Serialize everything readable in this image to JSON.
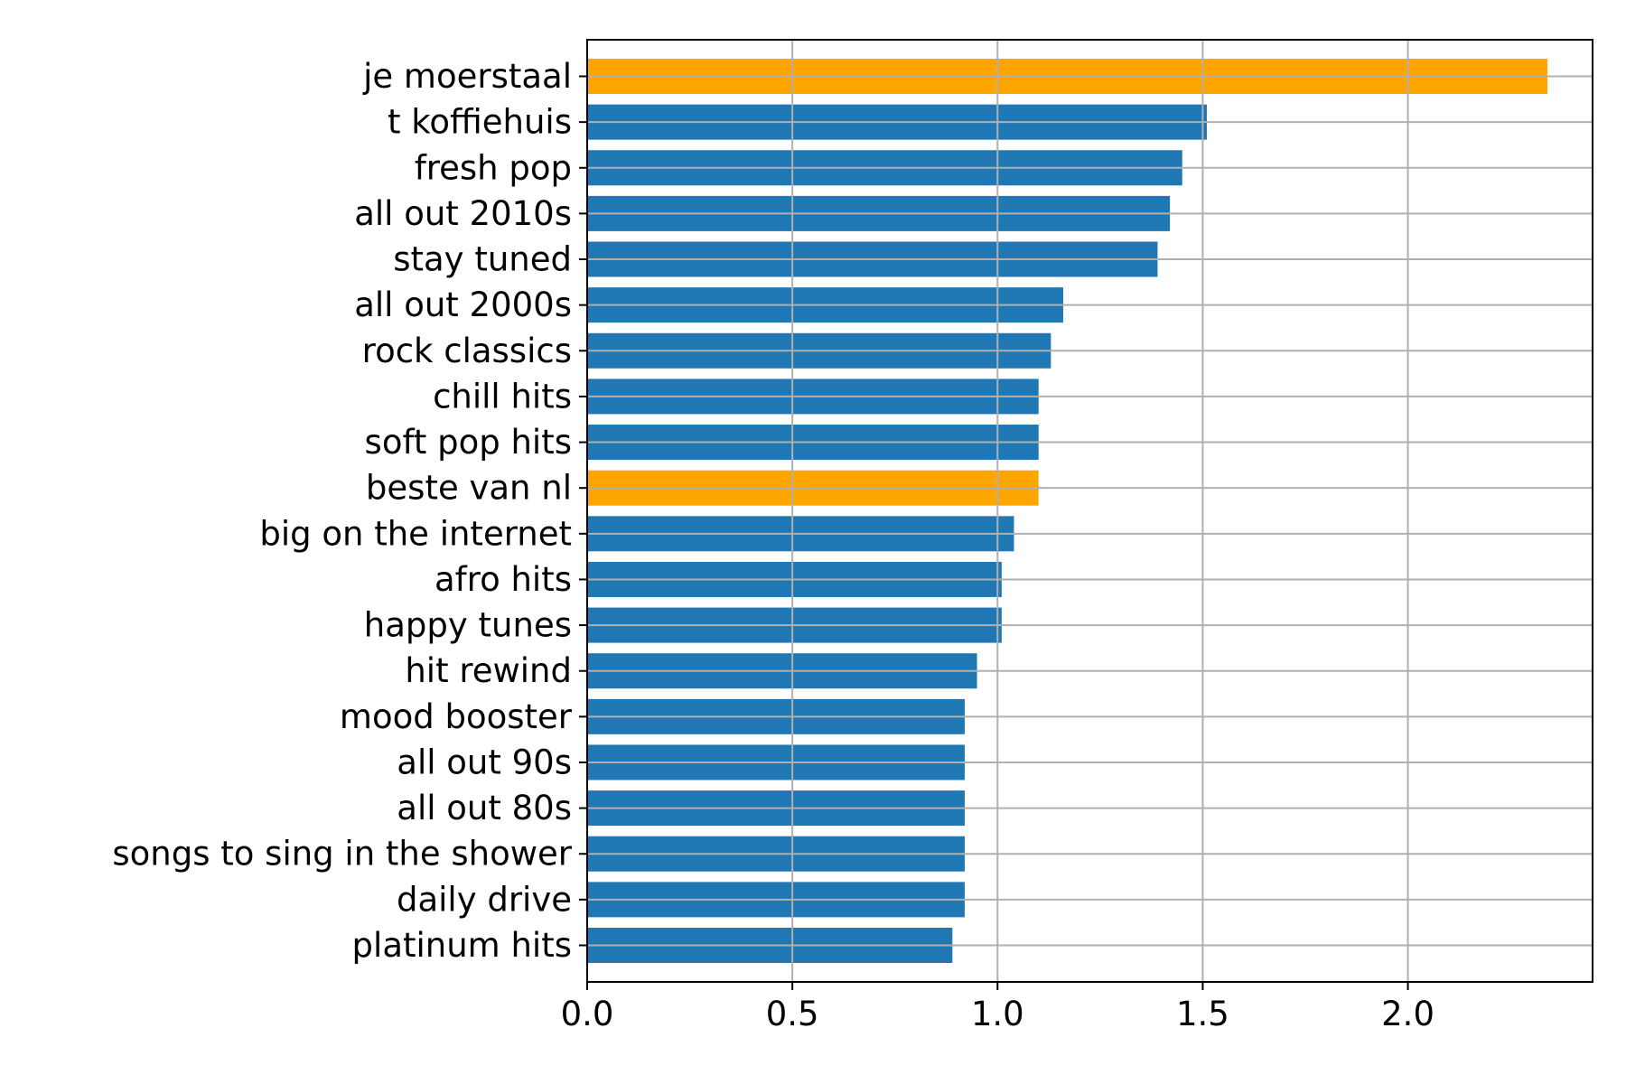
{
  "chart_data": {
    "type": "bar",
    "orientation": "horizontal",
    "title": "",
    "xlabel": "",
    "ylabel": "",
    "categories": [
      "je moerstaal",
      "t koffiehuis",
      "fresh pop",
      "all out 2010s",
      "stay tuned",
      "all out 2000s",
      "rock classics",
      "chill hits",
      "soft pop hits",
      "beste van nl",
      "big on the internet",
      "afro hits",
      "happy tunes",
      "hit rewind",
      "mood booster",
      "all out 90s",
      "all out 80s",
      "songs to sing in the shower",
      "daily drive",
      "platinum hits"
    ],
    "values": [
      2.34,
      1.51,
      1.45,
      1.42,
      1.39,
      1.16,
      1.13,
      1.1,
      1.1,
      1.1,
      1.04,
      1.01,
      1.01,
      0.95,
      0.92,
      0.92,
      0.92,
      0.92,
      0.92,
      0.89
    ],
    "highlighted": [
      "je moerstaal",
      "beste van nl"
    ],
    "xlim": [
      0,
      2.45
    ],
    "xticks": [
      0.0,
      0.5,
      1.0,
      1.5,
      2.0
    ],
    "xtick_labels": [
      "0.0",
      "0.5",
      "1.0",
      "1.5",
      "2.0"
    ],
    "grid": true,
    "legend": "none",
    "colors": {
      "bar": "#1f77b4",
      "highlight": "#ffa500",
      "grid": "#b0b0b0",
      "axis": "#000000"
    }
  }
}
